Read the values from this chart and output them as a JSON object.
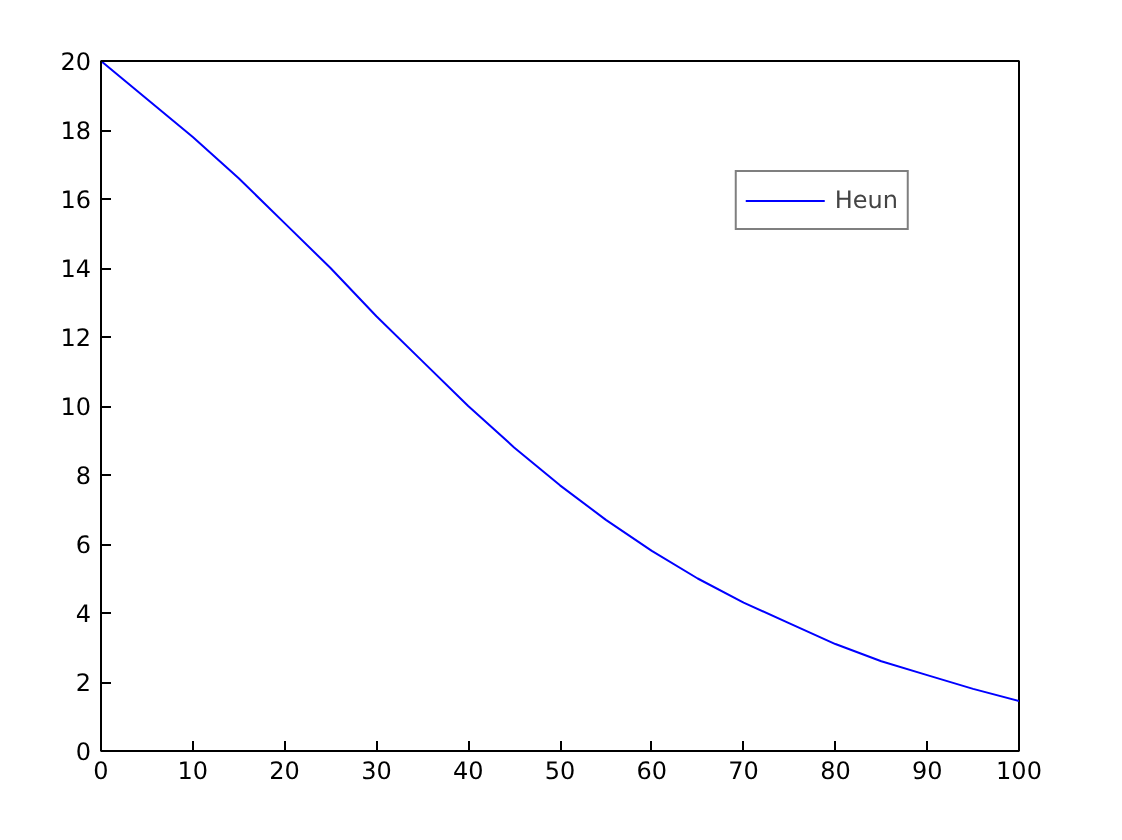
{
  "chart_data": {
    "type": "line",
    "legend": "top right",
    "grid": false,
    "marker": "none",
    "line_style": "solid",
    "xlim": [
      0,
      100
    ],
    "ylim": [
      0,
      20
    ],
    "xticks": [
      0,
      10,
      20,
      30,
      40,
      50,
      60,
      70,
      80,
      90,
      100
    ],
    "yticks": [
      0,
      2,
      4,
      6,
      8,
      10,
      12,
      14,
      16,
      18,
      20
    ],
    "x": [
      0,
      5,
      10,
      15,
      20,
      25,
      30,
      35,
      40,
      45,
      50,
      55,
      60,
      65,
      70,
      75,
      80,
      85,
      90,
      95,
      100
    ],
    "series": [
      {
        "name": "Heun",
        "color": "#0000ff",
        "values": [
          20,
          18.9,
          17.8,
          16.6,
          15.3,
          14.0,
          12.6,
          11.3,
          10.0,
          8.8,
          7.7,
          6.7,
          5.8,
          5.0,
          4.3,
          3.7,
          3.1,
          2.6,
          2.2,
          1.8,
          1.45
        ]
      }
    ]
  }
}
